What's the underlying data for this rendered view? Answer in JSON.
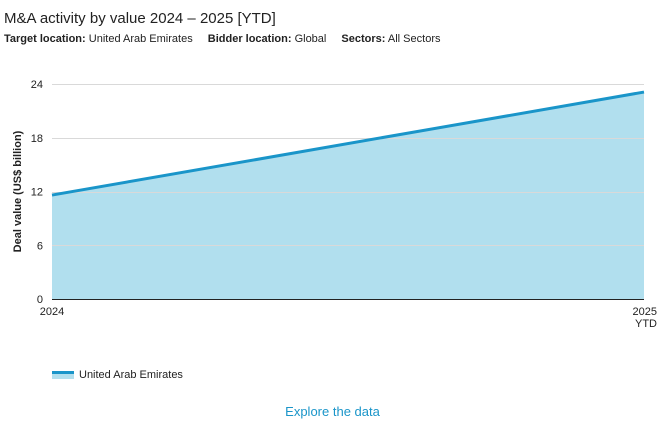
{
  "header": {
    "title": "M&A activity by value 2024 – 2025 [YTD]",
    "filters": [
      {
        "label": "Target location:",
        "value": "United Arab Emirates"
      },
      {
        "label": "Bidder location:",
        "value": "Global"
      },
      {
        "label": "Sectors:",
        "value": "All Sectors"
      }
    ]
  },
  "chart_data": {
    "type": "area",
    "title": "M&A activity by value 2024 – 2025 [YTD]",
    "xlabel": "",
    "ylabel": "Deal value (US$ billion)",
    "categories": [
      [
        "2024"
      ],
      [
        "2025",
        "YTD"
      ]
    ],
    "series": [
      {
        "name": "United Arab Emirates",
        "values": [
          11.6,
          23.1
        ]
      }
    ],
    "ylim": [
      0,
      24
    ],
    "yticks": [
      0,
      6,
      12,
      18,
      24
    ],
    "grid": true,
    "legend": "bottom-left"
  },
  "legend": {
    "items": [
      {
        "label": "United Arab Emirates"
      }
    ]
  },
  "footer": {
    "link_label": "Explore the data"
  },
  "colors": {
    "line": "#1a95c9",
    "fill": "#b1dfee",
    "grid": "#d9d9d9",
    "axis": "#222222",
    "link": "#1a95c9"
  }
}
